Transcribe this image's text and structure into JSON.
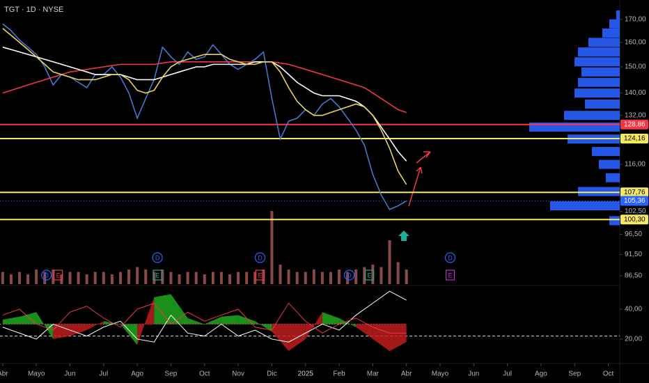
{
  "chart_data": {
    "type": "line",
    "title": "TGT · 1D · NYSE",
    "log_scale": true,
    "xlim": [
      -0.08,
      18.34
    ],
    "ylim": [
      84.3,
      178.9
    ],
    "xticks": [
      {
        "value": 0,
        "label": "Abr"
      },
      {
        "value": 1,
        "label": "Mayo"
      },
      {
        "value": 2,
        "label": "Jun"
      },
      {
        "value": 3,
        "label": "Jul"
      },
      {
        "value": 4,
        "label": "Ago"
      },
      {
        "value": 5,
        "label": "Sep"
      },
      {
        "value": 6,
        "label": "Oct"
      },
      {
        "value": 7,
        "label": "Nov"
      },
      {
        "value": 8,
        "label": "Dic"
      },
      {
        "value": 9,
        "label": "2025"
      },
      {
        "value": 10,
        "label": "Feb"
      },
      {
        "value": 11,
        "label": "Mar"
      },
      {
        "value": 12,
        "label": "Abr"
      },
      {
        "value": 13,
        "label": "Mayo"
      },
      {
        "value": 14,
        "label": "Jun"
      },
      {
        "value": 15,
        "label": "Jul"
      },
      {
        "value": 16,
        "label": "Ago"
      },
      {
        "value": 17,
        "label": "Sep"
      },
      {
        "value": 18,
        "label": "Oct"
      }
    ],
    "yticks": [
      {
        "value": 170,
        "label": "170,00"
      },
      {
        "value": 160,
        "label": "160,00"
      },
      {
        "value": 150,
        "label": "150,00"
      },
      {
        "value": 140,
        "label": "140,00"
      },
      {
        "value": 132,
        "label": "132,00"
      },
      {
        "value": 116,
        "label": "116,00"
      },
      {
        "value": 102.5,
        "label": "102,50"
      },
      {
        "value": 96.5,
        "label": "96,50"
      },
      {
        "value": 91.5,
        "label": "91,50"
      },
      {
        "value": 86.5,
        "label": "86,50"
      }
    ],
    "levels": [
      {
        "value": 128.86,
        "label": "128,86",
        "color": "#f23645"
      },
      {
        "value": 124.16,
        "label": "124,16",
        "color": "#f5e663"
      },
      {
        "value": 107.76,
        "label": "107,76",
        "color": "#f5e663"
      },
      {
        "value": 105.36,
        "label": "105,36",
        "color": "#2962ff"
      },
      {
        "value": 100.3,
        "label": "100,30",
        "color": "#f5e663"
      }
    ],
    "x": [
      0,
      0.25,
      0.5,
      0.75,
      1,
      1.25,
      1.5,
      1.75,
      2,
      2.25,
      2.5,
      2.75,
      3,
      3.25,
      3.5,
      3.75,
      4,
      4.25,
      4.5,
      4.75,
      5,
      5.25,
      5.5,
      5.75,
      6,
      6.25,
      6.5,
      6.75,
      7,
      7.25,
      7.5,
      7.75,
      8,
      8.25,
      8.5,
      8.75,
      9,
      9.25,
      9.5,
      9.75,
      10,
      10.25,
      10.5,
      10.75,
      11,
      11.25,
      11.5,
      11.75,
      12
    ],
    "series": [
      {
        "color": "#4a7ddb",
        "values": [
          168,
          165,
          161,
          158,
          155,
          150,
          143,
          147,
          146,
          144,
          142,
          147,
          147,
          150,
          146,
          140,
          131,
          138,
          145,
          158,
          154,
          151,
          156,
          153,
          154,
          159,
          155,
          151,
          149,
          151,
          153,
          156,
          138,
          124,
          130,
          131,
          134,
          132,
          136,
          138,
          135,
          131,
          127,
          122,
          113,
          107,
          103,
          104,
          105.36
        ]
      },
      {
        "color": "#f23645",
        "values": [
          140,
          141,
          142,
          143,
          144,
          145,
          146,
          147,
          148,
          148.5,
          149,
          149.5,
          150,
          150.5,
          151,
          151,
          151,
          151,
          151,
          151.5,
          152,
          152,
          152,
          152,
          152,
          152,
          152,
          152,
          152,
          152,
          152,
          152,
          152,
          151.5,
          151,
          150,
          149,
          148,
          147,
          146,
          145,
          144,
          143,
          142,
          140,
          138,
          136,
          134,
          133
        ]
      },
      {
        "color": "#ffffff",
        "values": [
          158,
          157,
          156,
          155,
          154,
          153,
          152,
          151,
          150,
          149,
          148,
          147,
          147,
          147,
          147,
          146,
          145,
          145,
          145,
          146,
          147,
          148,
          149,
          150,
          150,
          151,
          151,
          151,
          151,
          151,
          152,
          152,
          152,
          150,
          147,
          144,
          142,
          140,
          139,
          139,
          139,
          138,
          137,
          135,
          132,
          128,
          124,
          120,
          117
        ]
      },
      {
        "color": "#e8d55a",
        "values": [
          166,
          163,
          160,
          157,
          154,
          151,
          148,
          147,
          146,
          145,
          145,
          145,
          146,
          147,
          147,
          145,
          141,
          140,
          141,
          146,
          150,
          152,
          153,
          154,
          155,
          155,
          155,
          153,
          152,
          151,
          151,
          152,
          152,
          148,
          142,
          137,
          134,
          132,
          132,
          133,
          134,
          135,
          136,
          135,
          132,
          127,
          121,
          114,
          110
        ]
      }
    ],
    "volume": {
      "color": "#8a4a4a",
      "ylim": [
        0,
        40
      ],
      "values": [
        5,
        4,
        5,
        4,
        6,
        5,
        6,
        4,
        5,
        5,
        4,
        5,
        5,
        4,
        5,
        6,
        7,
        6,
        5,
        6,
        5,
        4,
        5,
        5,
        4,
        5,
        5,
        4,
        5,
        5,
        5,
        6,
        30,
        8,
        6,
        5,
        5,
        6,
        5,
        5,
        6,
        5,
        6,
        7,
        8,
        7,
        18,
        9,
        6
      ]
    },
    "volume_profile": {
      "color": "#2962ff",
      "prices": [
        172,
        168,
        164,
        160,
        156,
        152,
        148,
        144,
        140,
        136,
        132,
        128,
        124,
        120,
        116,
        112,
        108,
        104,
        100
      ],
      "values": [
        5,
        15,
        25,
        45,
        60,
        65,
        55,
        60,
        65,
        50,
        80,
        130,
        75,
        40,
        30,
        20,
        60,
        100,
        15
      ]
    },
    "events": [
      {
        "x": 1.3,
        "label": "D",
        "color": "#2962ff"
      },
      {
        "x": 1.65,
        "label": "E",
        "color": "#f23645"
      },
      {
        "x": 4.6,
        "label": "D",
        "color": "#2962ff"
      },
      {
        "x": 4.6,
        "label": "E",
        "color": "#22ab94"
      },
      {
        "x": 7.65,
        "label": "D",
        "color": "#2962ff"
      },
      {
        "x": 7.65,
        "label": "E",
        "color": "#f23645"
      },
      {
        "x": 10.3,
        "label": "D",
        "color": "#2962ff"
      },
      {
        "x": 10.9,
        "label": "E",
        "color": "#22ab94"
      },
      {
        "x": 13.3,
        "label": "D",
        "color": "#2962ff"
      },
      {
        "x": 13.3,
        "label": "E",
        "color": "#c030d0"
      }
    ],
    "oscillator": {
      "ylim": [
        4.6,
        53.5
      ],
      "yticks": [
        {
          "value": 40,
          "label": "40,00"
        },
        {
          "value": 20,
          "label": "20,00"
        }
      ],
      "level": 22,
      "baseline": 30,
      "x": [
        0,
        0.5,
        1,
        1.5,
        2,
        2.5,
        3,
        3.5,
        4,
        4.5,
        5,
        5.5,
        6,
        6.5,
        7,
        7.5,
        8,
        8.5,
        9,
        9.5,
        10,
        10.5,
        11,
        11.5,
        12
      ],
      "momentum": [
        33,
        35,
        38,
        20,
        22,
        26,
        32,
        30,
        16,
        48,
        50,
        34,
        30,
        35,
        36,
        32,
        25,
        12,
        20,
        38,
        34,
        28,
        20,
        12,
        18
      ],
      "series": [
        {
          "color": "#ffffff",
          "values": [
            28,
            24,
            20,
            30,
            26,
            22,
            28,
            32,
            20,
            18,
            36,
            24,
            22,
            30,
            22,
            26,
            20,
            18,
            24,
            30,
            26,
            36,
            44,
            52,
            46
          ]
        },
        {
          "color": "#f23645",
          "values": [
            36,
            40,
            30,
            26,
            38,
            42,
            34,
            28,
            40,
            44,
            30,
            38,
            32,
            36,
            40,
            28,
            26,
            44,
            32,
            24,
            30,
            34,
            28,
            24,
            24
          ]
        }
      ]
    }
  }
}
